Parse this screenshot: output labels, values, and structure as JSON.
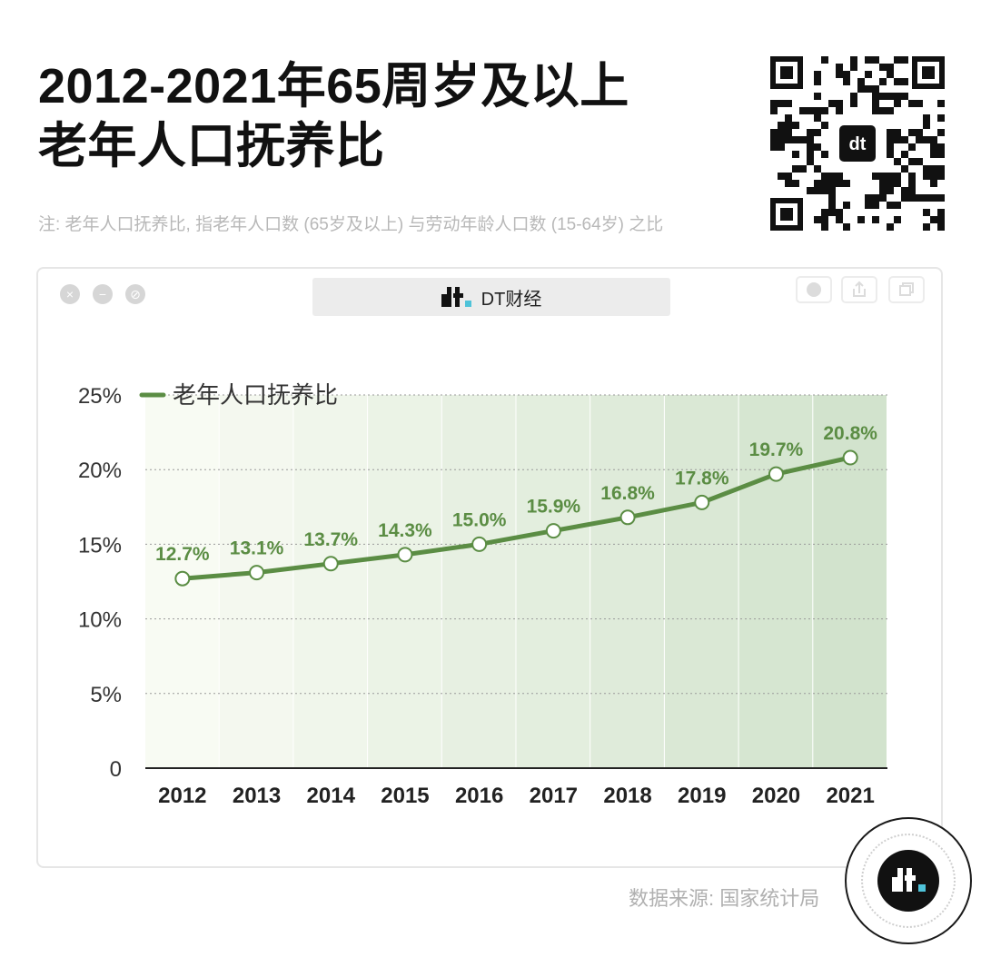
{
  "header": {
    "title_line1": "2012-2021年65周岁及以上",
    "title_line2": "老年人口抚养比",
    "note": "注: 老年人口抚养比, 指老年人口数 (65岁及以上) 与劳动年龄人口数 (15-64岁) 之比"
  },
  "window": {
    "tab_label": "DT财经",
    "qr_icon": "qr-code-icon"
  },
  "footer": {
    "source": "数据来源: 国家统计局"
  },
  "colors": {
    "line": "#5b8d44",
    "label": "#5b8d44",
    "accent": "#4fc3d9"
  },
  "chart_data": {
    "type": "line",
    "title": "",
    "xlabel": "",
    "ylabel": "",
    "categories": [
      "2012",
      "2013",
      "2014",
      "2015",
      "2016",
      "2017",
      "2018",
      "2019",
      "2020",
      "2021"
    ],
    "series": [
      {
        "name": "老年人口抚养比",
        "values": [
          12.7,
          13.1,
          13.7,
          14.3,
          15.0,
          15.9,
          16.8,
          17.8,
          19.7,
          20.8
        ],
        "labels": [
          "12.7%",
          "13.1%",
          "13.7%",
          "14.3%",
          "15.0%",
          "15.9%",
          "16.8%",
          "17.8%",
          "19.7%",
          "20.8%"
        ]
      }
    ],
    "ylim": [
      0,
      25
    ],
    "yticks": [
      0,
      5,
      10,
      15,
      20,
      25
    ],
    "ytick_labels": [
      "0",
      "5%",
      "10%",
      "15%",
      "20%",
      "25%"
    ],
    "grid": true,
    "legend_position": "top-left"
  }
}
